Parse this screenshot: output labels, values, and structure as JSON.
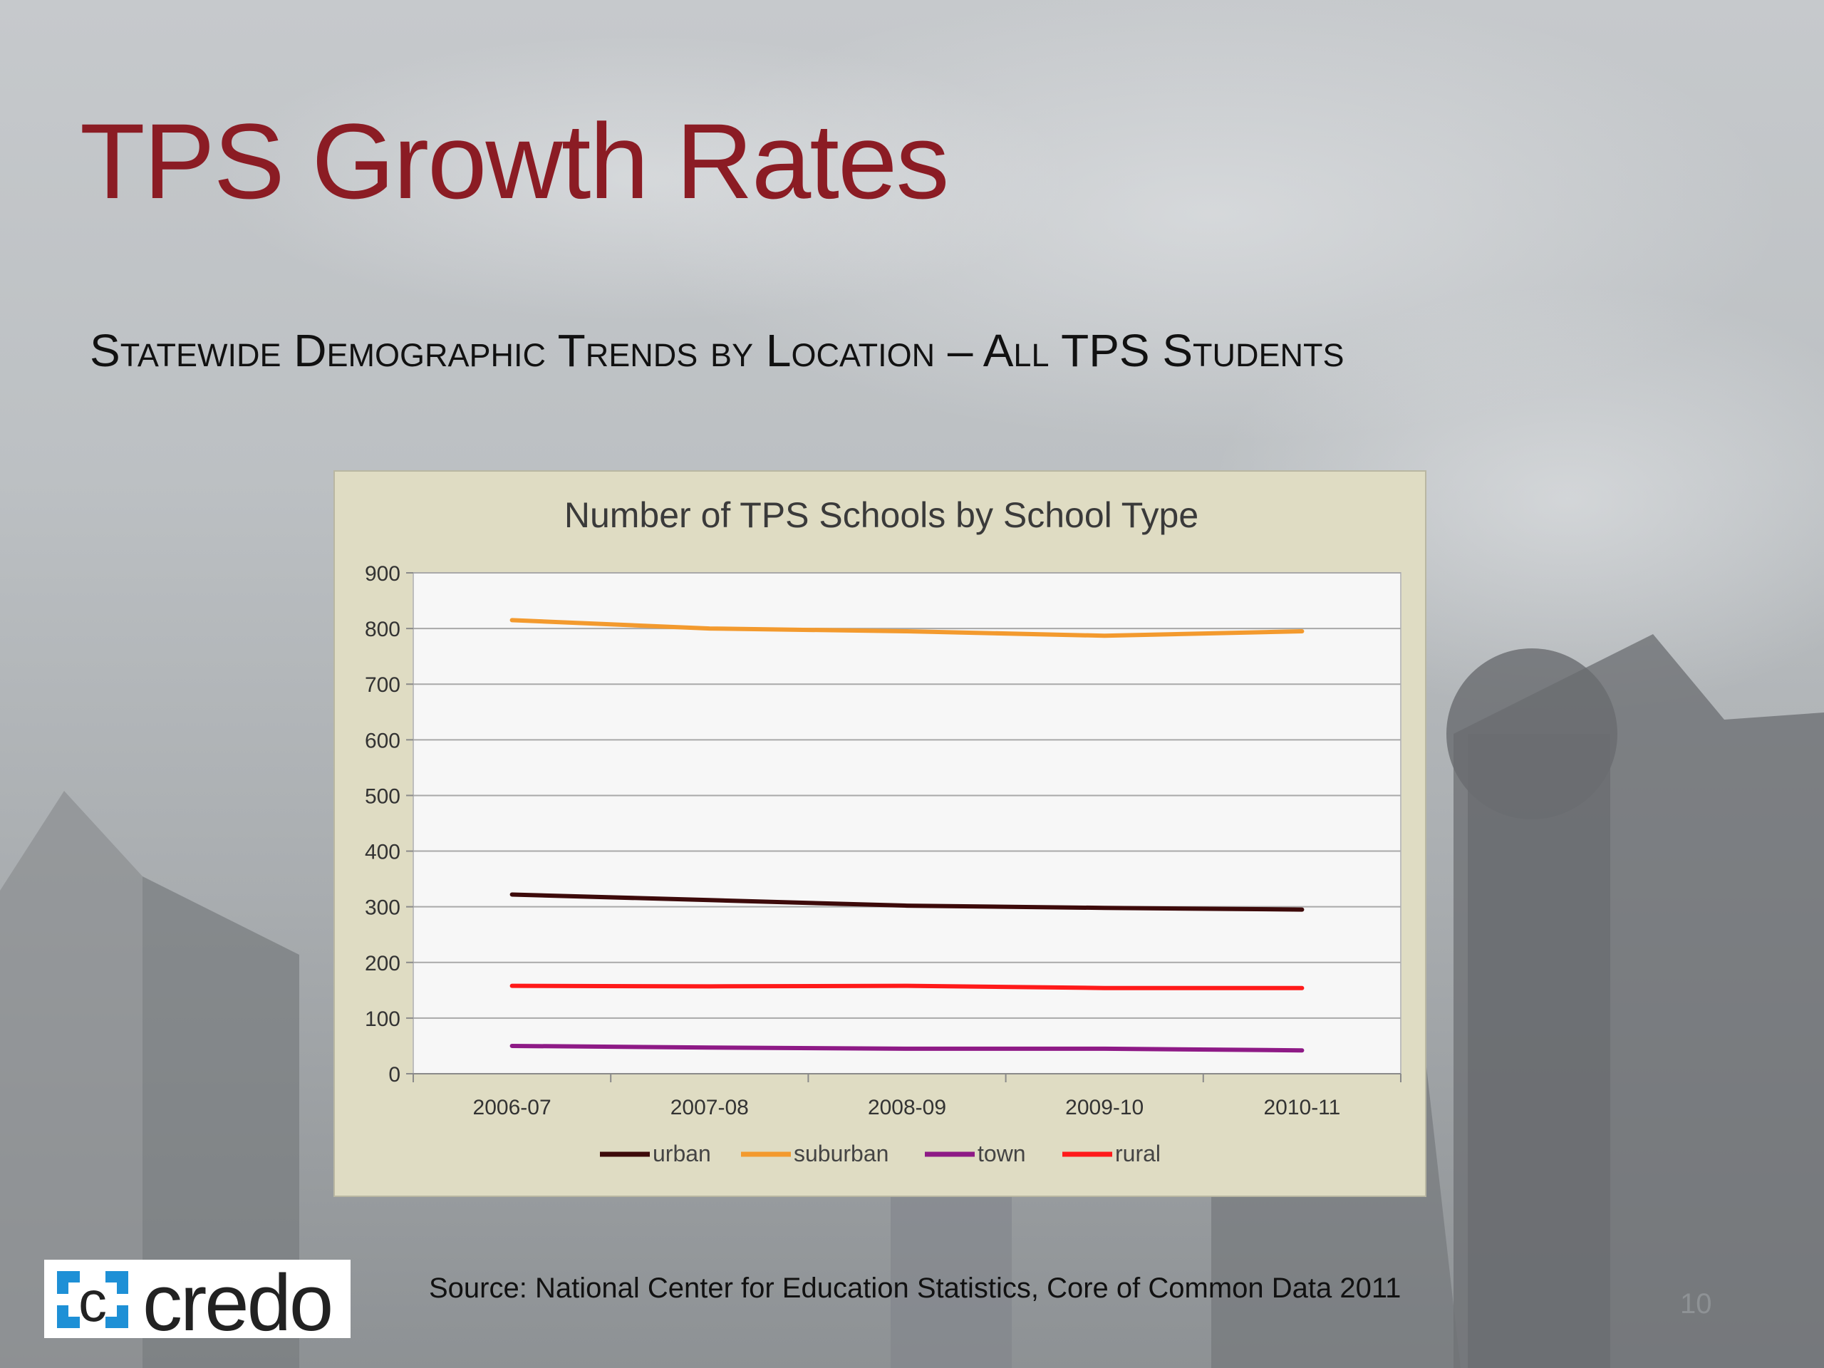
{
  "slide": {
    "title": "TPS Growth Rates",
    "subtitle": "Statewide Demographic Trends by Location – All TPS Students",
    "source": "Source:  National Center for Education Statistics, Core of Common Data 2011",
    "page_number": "10",
    "logo_text": "credo"
  },
  "chart_data": {
    "type": "line",
    "title": "Number of TPS Schools by School Type",
    "categories": [
      "2006-07",
      "2007-08",
      "2008-09",
      "2009-10",
      "2010-11"
    ],
    "ylim": [
      0,
      900
    ],
    "yticks": [
      "0",
      "100",
      "200",
      "300",
      "400",
      "500",
      "600",
      "700",
      "800",
      "900"
    ],
    "grid": true,
    "legend_position": "bottom",
    "series": [
      {
        "name": "urban",
        "color": "#3d0a0a",
        "values": [
          322,
          312,
          302,
          298,
          295
        ]
      },
      {
        "name": "suburban",
        "color": "#f39a2e",
        "values": [
          815,
          800,
          795,
          787,
          795
        ]
      },
      {
        "name": "town",
        "color": "#8e1a86",
        "values": [
          50,
          47,
          45,
          45,
          42
        ]
      },
      {
        "name": "rural",
        "color": "#ff1a1a",
        "values": [
          158,
          157,
          158,
          154,
          154
        ]
      }
    ]
  },
  "colors": {
    "title": "#8b1c24",
    "chart_background": "#dfdcc3",
    "plot_background": "#f7f7f7"
  }
}
